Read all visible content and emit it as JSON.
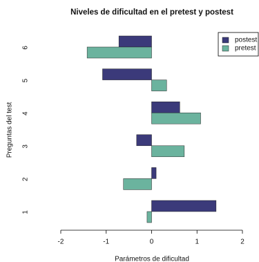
{
  "chart_data": {
    "type": "hbar",
    "title": "Niveles de dificultad en el pretest y postest",
    "xlabel": "Parámetros de dificultad",
    "ylabel": "Preguntas del test",
    "categories": [
      "1",
      "2",
      "3",
      "4",
      "5",
      "6"
    ],
    "series": [
      {
        "name": "postest",
        "color": "#3b3a7a",
        "values": [
          1.42,
          0.1,
          -0.33,
          0.62,
          -1.08,
          -0.72
        ]
      },
      {
        "name": "pretest",
        "color": "#6bb39e",
        "values": [
          -0.1,
          -0.62,
          0.72,
          1.08,
          0.33,
          -1.42
        ]
      }
    ],
    "xlim": [
      -2,
      2
    ],
    "xticks": [
      -2,
      -1,
      0,
      1,
      2
    ],
    "legend": "top-right"
  }
}
